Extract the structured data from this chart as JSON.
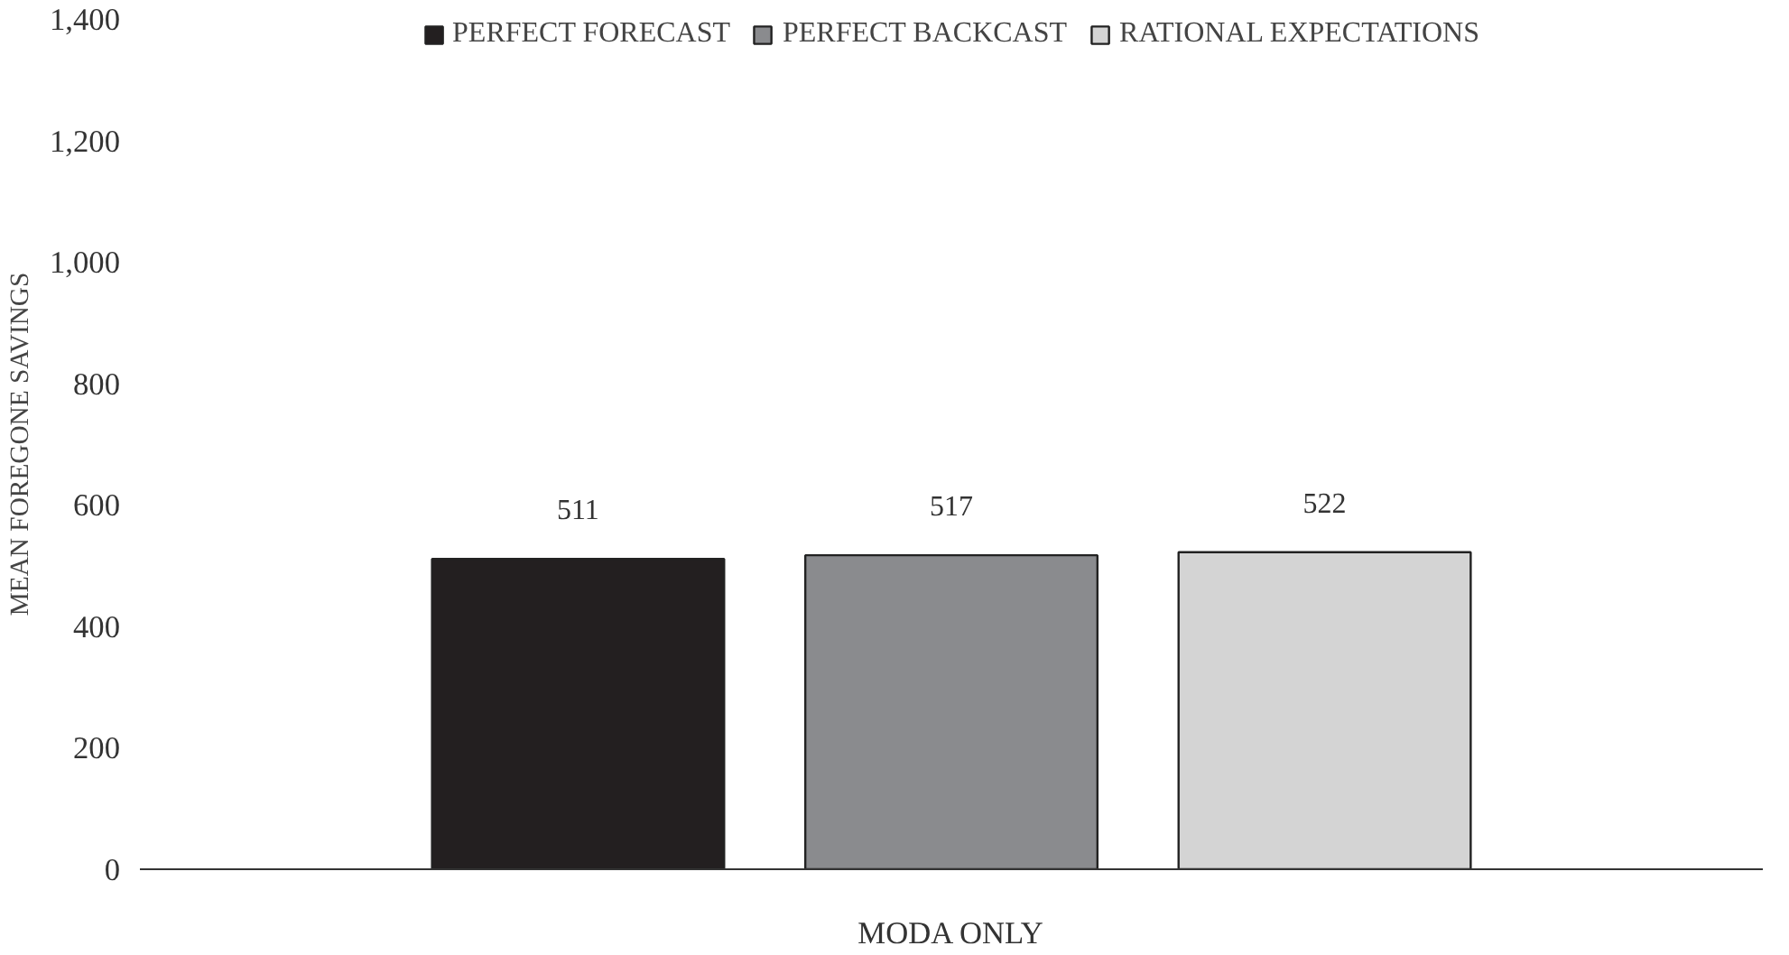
{
  "chart_data": {
    "type": "bar",
    "ylabel": "MEAN FOREGONE SAVINGS",
    "categories": [
      "MODA ONLY"
    ],
    "series": [
      {
        "name": "PERFECT FORECAST",
        "color": "#231f20",
        "values": [
          511
        ]
      },
      {
        "name": "PERFECT BACKCAST",
        "color": "#8a8b8e",
        "values": [
          517
        ]
      },
      {
        "name": "RATIONAL EXPECTATIONS",
        "color": "#d4d4d4",
        "values": [
          522
        ]
      }
    ],
    "ylim": [
      0,
      1400
    ],
    "yticks": [
      0,
      {
        "value": 200,
        "label": "200"
      },
      400,
      600,
      800,
      {
        "value": 1000,
        "label": "1,000"
      },
      {
        "value": 1200,
        "label": "1,200"
      },
      {
        "value": 1400,
        "label": "1,400"
      }
    ],
    "data_labels": true,
    "legend": "top"
  }
}
